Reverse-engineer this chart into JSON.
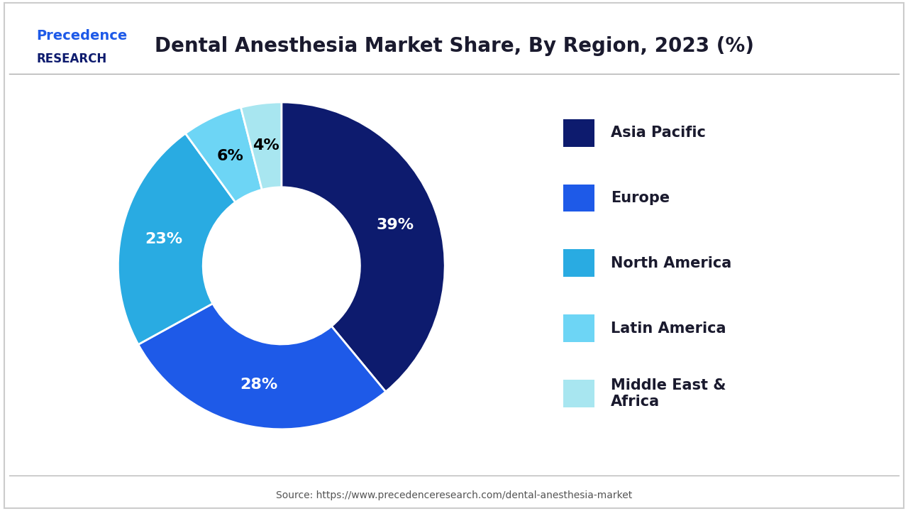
{
  "title": "Dental Anesthesia Market Share, By Region, 2023 (%)",
  "title_fontsize": 20,
  "title_color": "#1a1a2e",
  "labels": [
    "Asia Pacific",
    "Europe",
    "North America",
    "Latin America",
    "Middle East &\nAfrica"
  ],
  "values": [
    39,
    28,
    23,
    6,
    4
  ],
  "colors": [
    "#0d1b6e",
    "#1e5ae8",
    "#29abe2",
    "#6dd5f5",
    "#a8e6f0"
  ],
  "pct_labels": [
    "39%",
    "28%",
    "23%",
    "6%",
    "4%"
  ],
  "pct_colors": [
    "white",
    "white",
    "white",
    "black",
    "black"
  ],
  "source_text": "Source: https://www.precedenceresearch.com/dental-anesthesia-market",
  "background_color": "#ffffff",
  "border_color": "#cccccc",
  "logo_text_1": "Precedence",
  "logo_text_2": "RESEARCH"
}
